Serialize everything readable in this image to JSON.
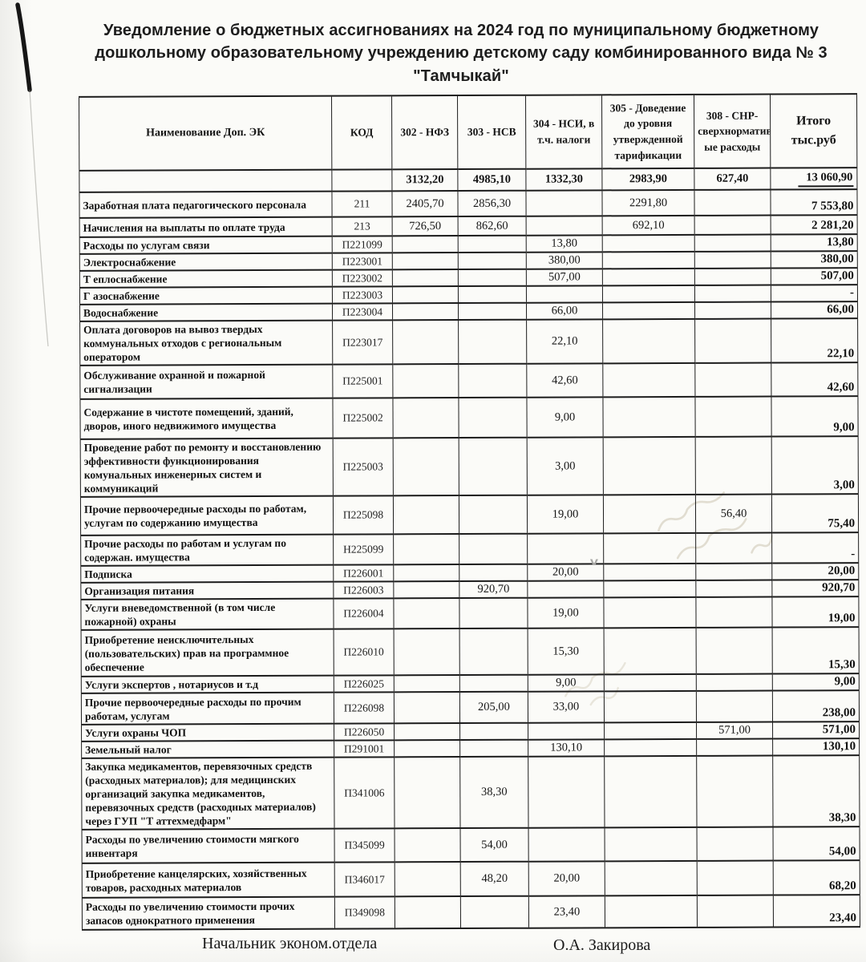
{
  "title": {
    "line1": "Уведомление о бюджетных ассигнованиях на 2024 год по муниципальному бюджетному",
    "line2": "дошкольному образовательному учреждению детскому саду комбинированного вида № 3",
    "line3": "\"Тамчыкай\""
  },
  "table": {
    "header": {
      "name": "Наименование Доп. ЭК",
      "code": "КОД",
      "c302": "302 - НФЗ",
      "c303": "303 - НСВ",
      "c304": "304  - НСИ, в т.ч. налоги",
      "c305": "305 - Доведение до уровня утвержденной тарификации",
      "c308": "308 - СНР-сверхнормативн ые расходы",
      "total": "Итого тыс.руб"
    },
    "totals": {
      "c302": "3132,20",
      "c303": "4985,10",
      "c304": "1332,30",
      "c305": "2983,90",
      "c308": "627,40",
      "total": "13 060,90"
    },
    "rows": [
      {
        "name": "Заработная плата педагогического персонала",
        "code": "211",
        "c302": "2405,70",
        "c303": "2856,30",
        "c304": "",
        "c305": "2291,80",
        "c308": "",
        "total": "7 553,80"
      },
      {
        "name": "Начисления на выплаты по оплате труда",
        "code": "213",
        "c302": "726,50",
        "c303": "862,60",
        "c304": "",
        "c305": "692,10",
        "c308": "",
        "total": "2 281,20"
      },
      {
        "name": "Расходы по услугам связи",
        "code": "П221099",
        "c302": "",
        "c303": "",
        "c304": "13,80",
        "c305": "",
        "c308": "",
        "total": "13,80"
      },
      {
        "name": "Электроснабжение",
        "code": "П223001",
        "c302": "",
        "c303": "",
        "c304": "380,00",
        "c305": "",
        "c308": "",
        "total": "380,00"
      },
      {
        "name": "Т еплоснабжение",
        "code": "П223002",
        "c302": "",
        "c303": "",
        "c304": "507,00",
        "c305": "",
        "c308": "",
        "total": "507,00"
      },
      {
        "name": "Г азоснабжение",
        "code": "П223003",
        "c302": "",
        "c303": "",
        "c304": "",
        "c305": "",
        "c308": "",
        "total": "-"
      },
      {
        "name": "Водоснабжение",
        "code": "П223004",
        "c302": "",
        "c303": "",
        "c304": "66,00",
        "c305": "",
        "c308": "",
        "total": "66,00"
      },
      {
        "name": "Оплата договоров на вывоз твердых коммунальных отходов с региональным оператором",
        "code": "П223017",
        "c302": "",
        "c303": "",
        "c304": "22,10",
        "c305": "",
        "c308": "",
        "total": "22,10"
      },
      {
        "name": "Обслуживание охранной и пожарной сигнализации",
        "code": "П225001",
        "c302": "",
        "c303": "",
        "c304": "42,60",
        "c305": "",
        "c308": "",
        "total": "42,60"
      },
      {
        "name": "Содержание в чистоте помещений, зданий, дворов, иного недвижимого имущества",
        "code": "П225002",
        "c302": "",
        "c303": "",
        "c304": "9,00",
        "c305": "",
        "c308": "",
        "total": "9,00"
      },
      {
        "name": "Проведение работ по ремонту и восстановлению эффективности функционирования комунальных инженерных систем и коммуникаций",
        "code": "П225003",
        "c302": "",
        "c303": "",
        "c304": "3,00",
        "c305": "",
        "c308": "",
        "total": "3,00"
      },
      {
        "name": "Прочие первоочередные расходы по работам, услугам по содержанию имущества",
        "code": "П225098",
        "c302": "",
        "c303": "",
        "c304": "19,00",
        "c305": "",
        "c308": "56,40",
        "total": "75,40"
      },
      {
        "name": "Прочие расходы по работам и услугам по содержан. имущества",
        "code": "Н225099",
        "c302": "",
        "c303": "",
        "c304": "",
        "c305": "",
        "c308": "",
        "total": "-"
      },
      {
        "name": "Подписка",
        "code": "П226001",
        "c302": "",
        "c303": "",
        "c304": "20,00",
        "c305": "",
        "c308": "",
        "total": "20,00"
      },
      {
        "name": "Организация питания",
        "code": "П226003",
        "c302": "",
        "c303": "920,70",
        "c304": "",
        "c305": "",
        "c308": "",
        "total": "920,70"
      },
      {
        "name": "Услуги вневедомственной (в том числе пожарной) охраны",
        "code": "П226004",
        "c302": "",
        "c303": "",
        "c304": "19,00",
        "c305": "",
        "c308": "",
        "total": "19,00"
      },
      {
        "name": "Приобретение неисключительных (пользовательских) прав на программное обеспечение",
        "code": "П226010",
        "c302": "",
        "c303": "",
        "c304": "15,30",
        "c305": "",
        "c308": "",
        "total": "15,30"
      },
      {
        "name": "Услуги экспертов , нотариусов и т.д",
        "code": "П226025",
        "c302": "",
        "c303": "",
        "c304": "9,00",
        "c305": "",
        "c308": "",
        "total": "9,00"
      },
      {
        "name": "Прочие первоочередные расходы по прочим работам, услугам",
        "code": "П226098",
        "c302": "",
        "c303": "205,00",
        "c304": "33,00",
        "c305": "",
        "c308": "",
        "total": "238,00"
      },
      {
        "name": "Услуги охраны ЧОП",
        "code": "П226050",
        "c302": "",
        "c303": "",
        "c304": "",
        "c305": "",
        "c308": "571,00",
        "total": "571,00"
      },
      {
        "name": "Земельный налог",
        "code": "П291001",
        "c302": "",
        "c303": "",
        "c304": "130,10",
        "c305": "",
        "c308": "",
        "total": "130,10"
      },
      {
        "name": "Закупка медикаментов, перевязочных средств (расходных материалов); для медицинских организаций закупка медикаментов, перевязочных средств (расходных материалов) через ГУП \"Т аттехмедфарм\"",
        "code": "П341006",
        "c302": "",
        "c303": "38,30",
        "c304": "",
        "c305": "",
        "c308": "",
        "total": "38,30"
      },
      {
        "name": "Расходы по увеличению стоимости мягкого инвентаря",
        "code": "П345099",
        "c302": "",
        "c303": "54,00",
        "c304": "",
        "c305": "",
        "c308": "",
        "total": "54,00"
      },
      {
        "name": "Приобретение канцелярских, хозяйственных товаров, расходных материалов",
        "code": "П346017",
        "c302": "",
        "c303": "48,20",
        "c304": "20,00",
        "c305": "",
        "c308": "",
        "total": "68,20"
      },
      {
        "name": "Расходы по увеличению стоимости прочих запасов однократного применения",
        "code": "П349098",
        "c302": "",
        "c303": "",
        "c304": "23,40",
        "c305": "",
        "c308": "",
        "total": "23,40"
      }
    ]
  },
  "annotations": {
    "check_mark": "v"
  },
  "signature": {
    "role": "Начальник эконом.отдела",
    "name": "О.А. Закирова"
  },
  "colors": {
    "paper": "#fbfbf8",
    "ink": "#111111",
    "border": "#1c1c1c",
    "ghost_ink": "#beb49c"
  }
}
